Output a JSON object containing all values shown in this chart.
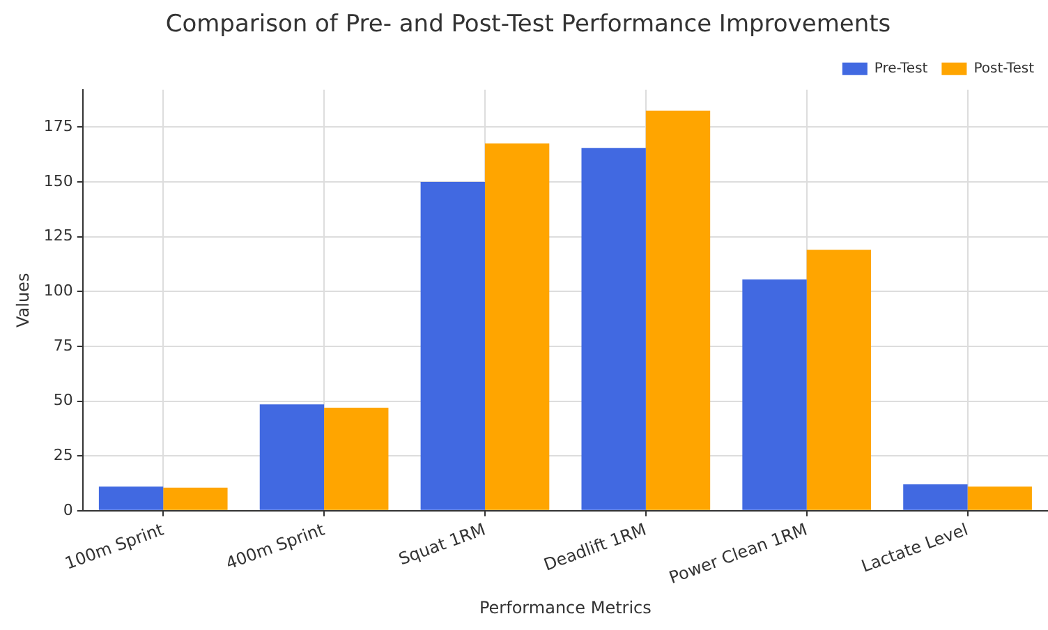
{
  "chart_data": {
    "type": "bar",
    "title": "Comparison of Pre- and Post-Test Performance Improvements",
    "xlabel": "Performance Metrics",
    "ylabel": "Values",
    "categories": [
      "100m Sprint",
      "400m Sprint",
      "Squat 1RM",
      "Deadlift 1RM",
      "Power Clean 1RM",
      "Lactate Level"
    ],
    "series": [
      {
        "name": "Pre-Test",
        "color": "#4169e1",
        "values": [
          11,
          48.5,
          150,
          165.5,
          105.5,
          12
        ]
      },
      {
        "name": "Post-Test",
        "color": "#ffa500",
        "values": [
          10.5,
          47,
          167.5,
          182.5,
          119,
          11
        ]
      }
    ],
    "ylim": [
      0,
      192
    ],
    "yticks": [
      0,
      25,
      50,
      75,
      100,
      125,
      150,
      175
    ],
    "grid": true,
    "legend": "top right"
  }
}
